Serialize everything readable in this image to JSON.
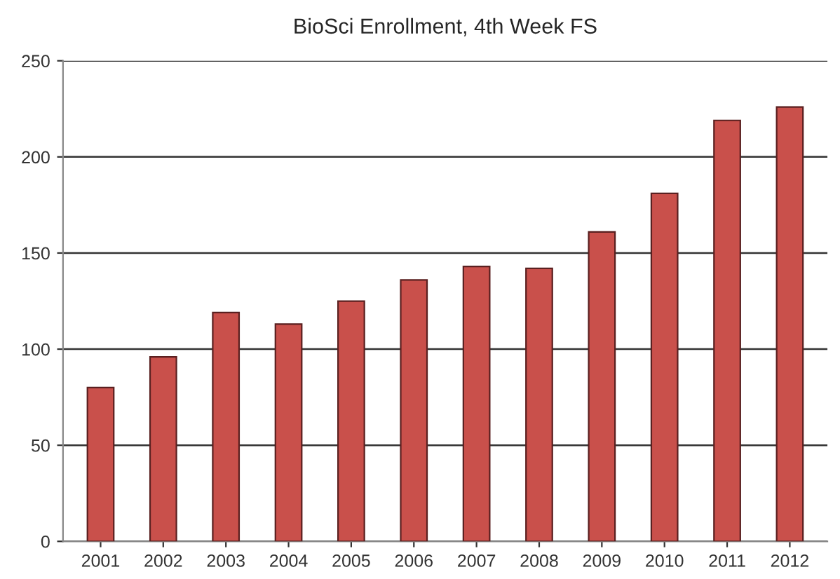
{
  "chart_data": {
    "type": "bar",
    "title": "BioSci Enrollment, 4th Week FS",
    "categories": [
      "2001",
      "2002",
      "2003",
      "2004",
      "2005",
      "2006",
      "2007",
      "2008",
      "2009",
      "2010",
      "2011",
      "2012"
    ],
    "values": [
      80,
      96,
      119,
      113,
      125,
      136,
      143,
      142,
      161,
      181,
      219,
      226
    ],
    "color": "#c9504b",
    "ylim": [
      0,
      250
    ],
    "yticks": [
      0,
      50,
      100,
      150,
      200,
      250
    ],
    "grid": "y"
  }
}
